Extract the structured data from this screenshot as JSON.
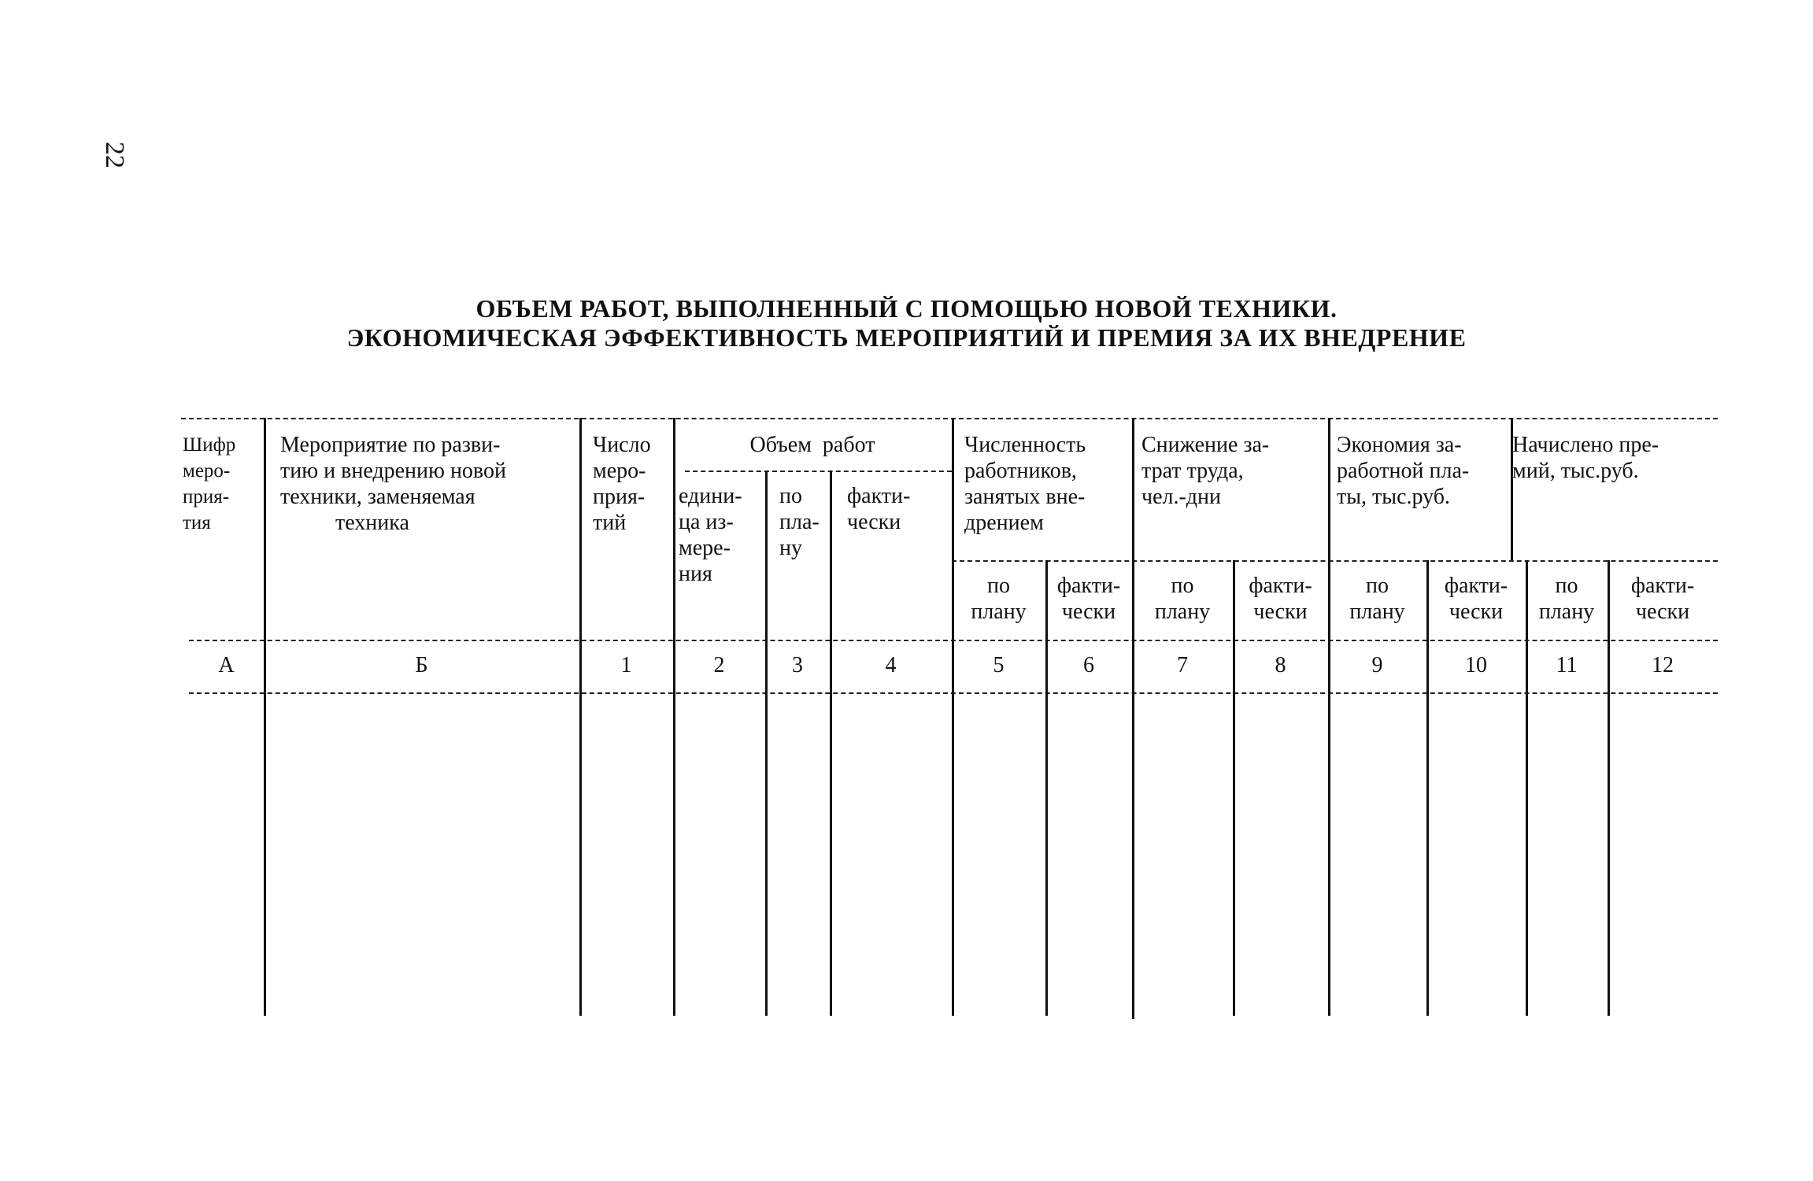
{
  "page_number": "22",
  "title": {
    "line1": "ОБЪЕМ РАБОТ, ВЫПОЛНЕННЫЙ С ПОМОЩЬЮ НОВОЙ ТЕХНИКИ.",
    "line2": "ЭКОНОМИЧЕСКАЯ ЭФФЕКТИВНОСТЬ МЕРОПРИЯТИЙ И ПРЕМИЯ ЗА ИХ ВНЕДРЕНИЕ"
  },
  "table": {
    "headers": {
      "code": "Шифр\nмеро-\nприя-\nтия",
      "measure": "Мероприятие по разви-\nтию и внедрению новой\nтехники, заменяемая\n          техника",
      "count": "Число\nмеро-\nприя-\nтий",
      "volume": "Объем  работ",
      "volume_unit": "едини-\nца из-\nмере-\nния",
      "volume_plan": "по\nпла-\nну",
      "volume_fact": "факти-\nчески",
      "workers": "Численность\nработников,\nзанятых вне-\nдрением",
      "labor": "Снижение за-\nтрат труда,\nчел.-дни",
      "wage": "Экономия за-\nработной пла-\nты, тыс.руб.",
      "bonus": "Начислено пре-\nмий, тыс.руб.",
      "plan": "по\nплану",
      "fact": "факти-\nчески"
    },
    "column_numbers": [
      "А",
      "Б",
      "1",
      "2",
      "3",
      "4",
      "5",
      "6",
      "7",
      "8",
      "9",
      "10",
      "11",
      "12"
    ],
    "rows": []
  }
}
